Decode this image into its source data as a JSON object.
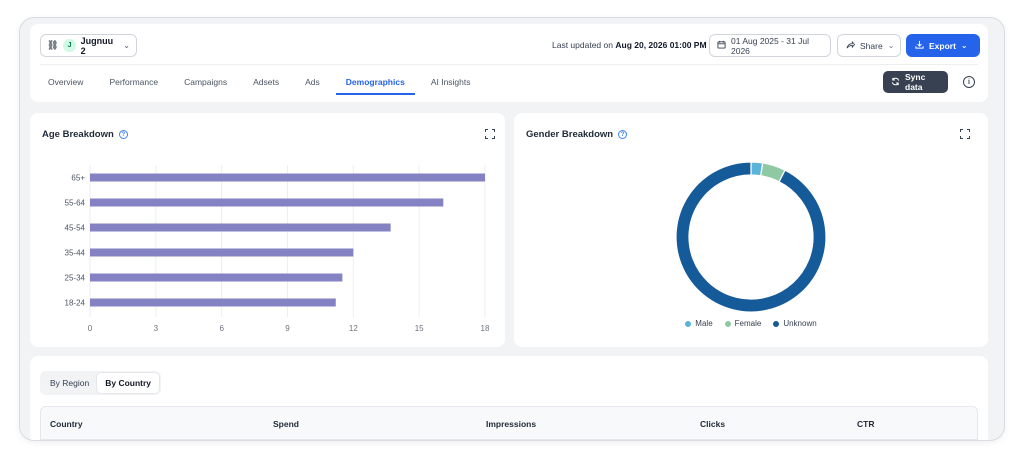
{
  "header": {
    "account_name": "Jugnuu 2",
    "account_initial": "J",
    "last_updated_prefix": "Last updated on",
    "last_updated_value": "Aug 20, 2026 01:00 PM",
    "date_range": "01 Aug 2025 - 31 Jul 2026",
    "share_label": "Share",
    "export_label": "Export",
    "sync_label": "Sync data"
  },
  "tabs": [
    {
      "label": "Overview"
    },
    {
      "label": "Performance"
    },
    {
      "label": "Campaigns"
    },
    {
      "label": "Adsets"
    },
    {
      "label": "Ads"
    },
    {
      "label": "Demographics",
      "active": true
    },
    {
      "label": "AI Insights"
    }
  ],
  "age_card": {
    "title": "Age Breakdown"
  },
  "gender_card": {
    "title": "Gender Breakdown"
  },
  "chart_data": [
    {
      "type": "bar",
      "orientation": "horizontal",
      "categories": [
        "65+",
        "55-64",
        "45-54",
        "35-44",
        "25-34",
        "18-24"
      ],
      "values": [
        18,
        16.1,
        13.7,
        12,
        11.5,
        11.2
      ],
      "xticks": [
        "0",
        "3",
        "6",
        "9",
        "12",
        "15",
        "18"
      ],
      "xlim": [
        0,
        18
      ],
      "grid": true,
      "color": "#8482c2"
    },
    {
      "type": "pie",
      "donut": true,
      "labels": [
        "Male",
        "Female",
        "Unknown"
      ],
      "values": [
        2.5,
        5,
        92.5
      ],
      "colors": [
        "#5ab4d9",
        "#8fc9a3",
        "#155a99"
      ],
      "legend": "bottom"
    }
  ],
  "region_toggle": {
    "by_region": "By Region",
    "by_country": "By Country"
  },
  "table": {
    "columns": [
      "Country",
      "Spend",
      "Impressions",
      "Clicks",
      "CTR"
    ]
  },
  "colors": {
    "accent": "#2563eb",
    "sync_bg": "#374151"
  }
}
